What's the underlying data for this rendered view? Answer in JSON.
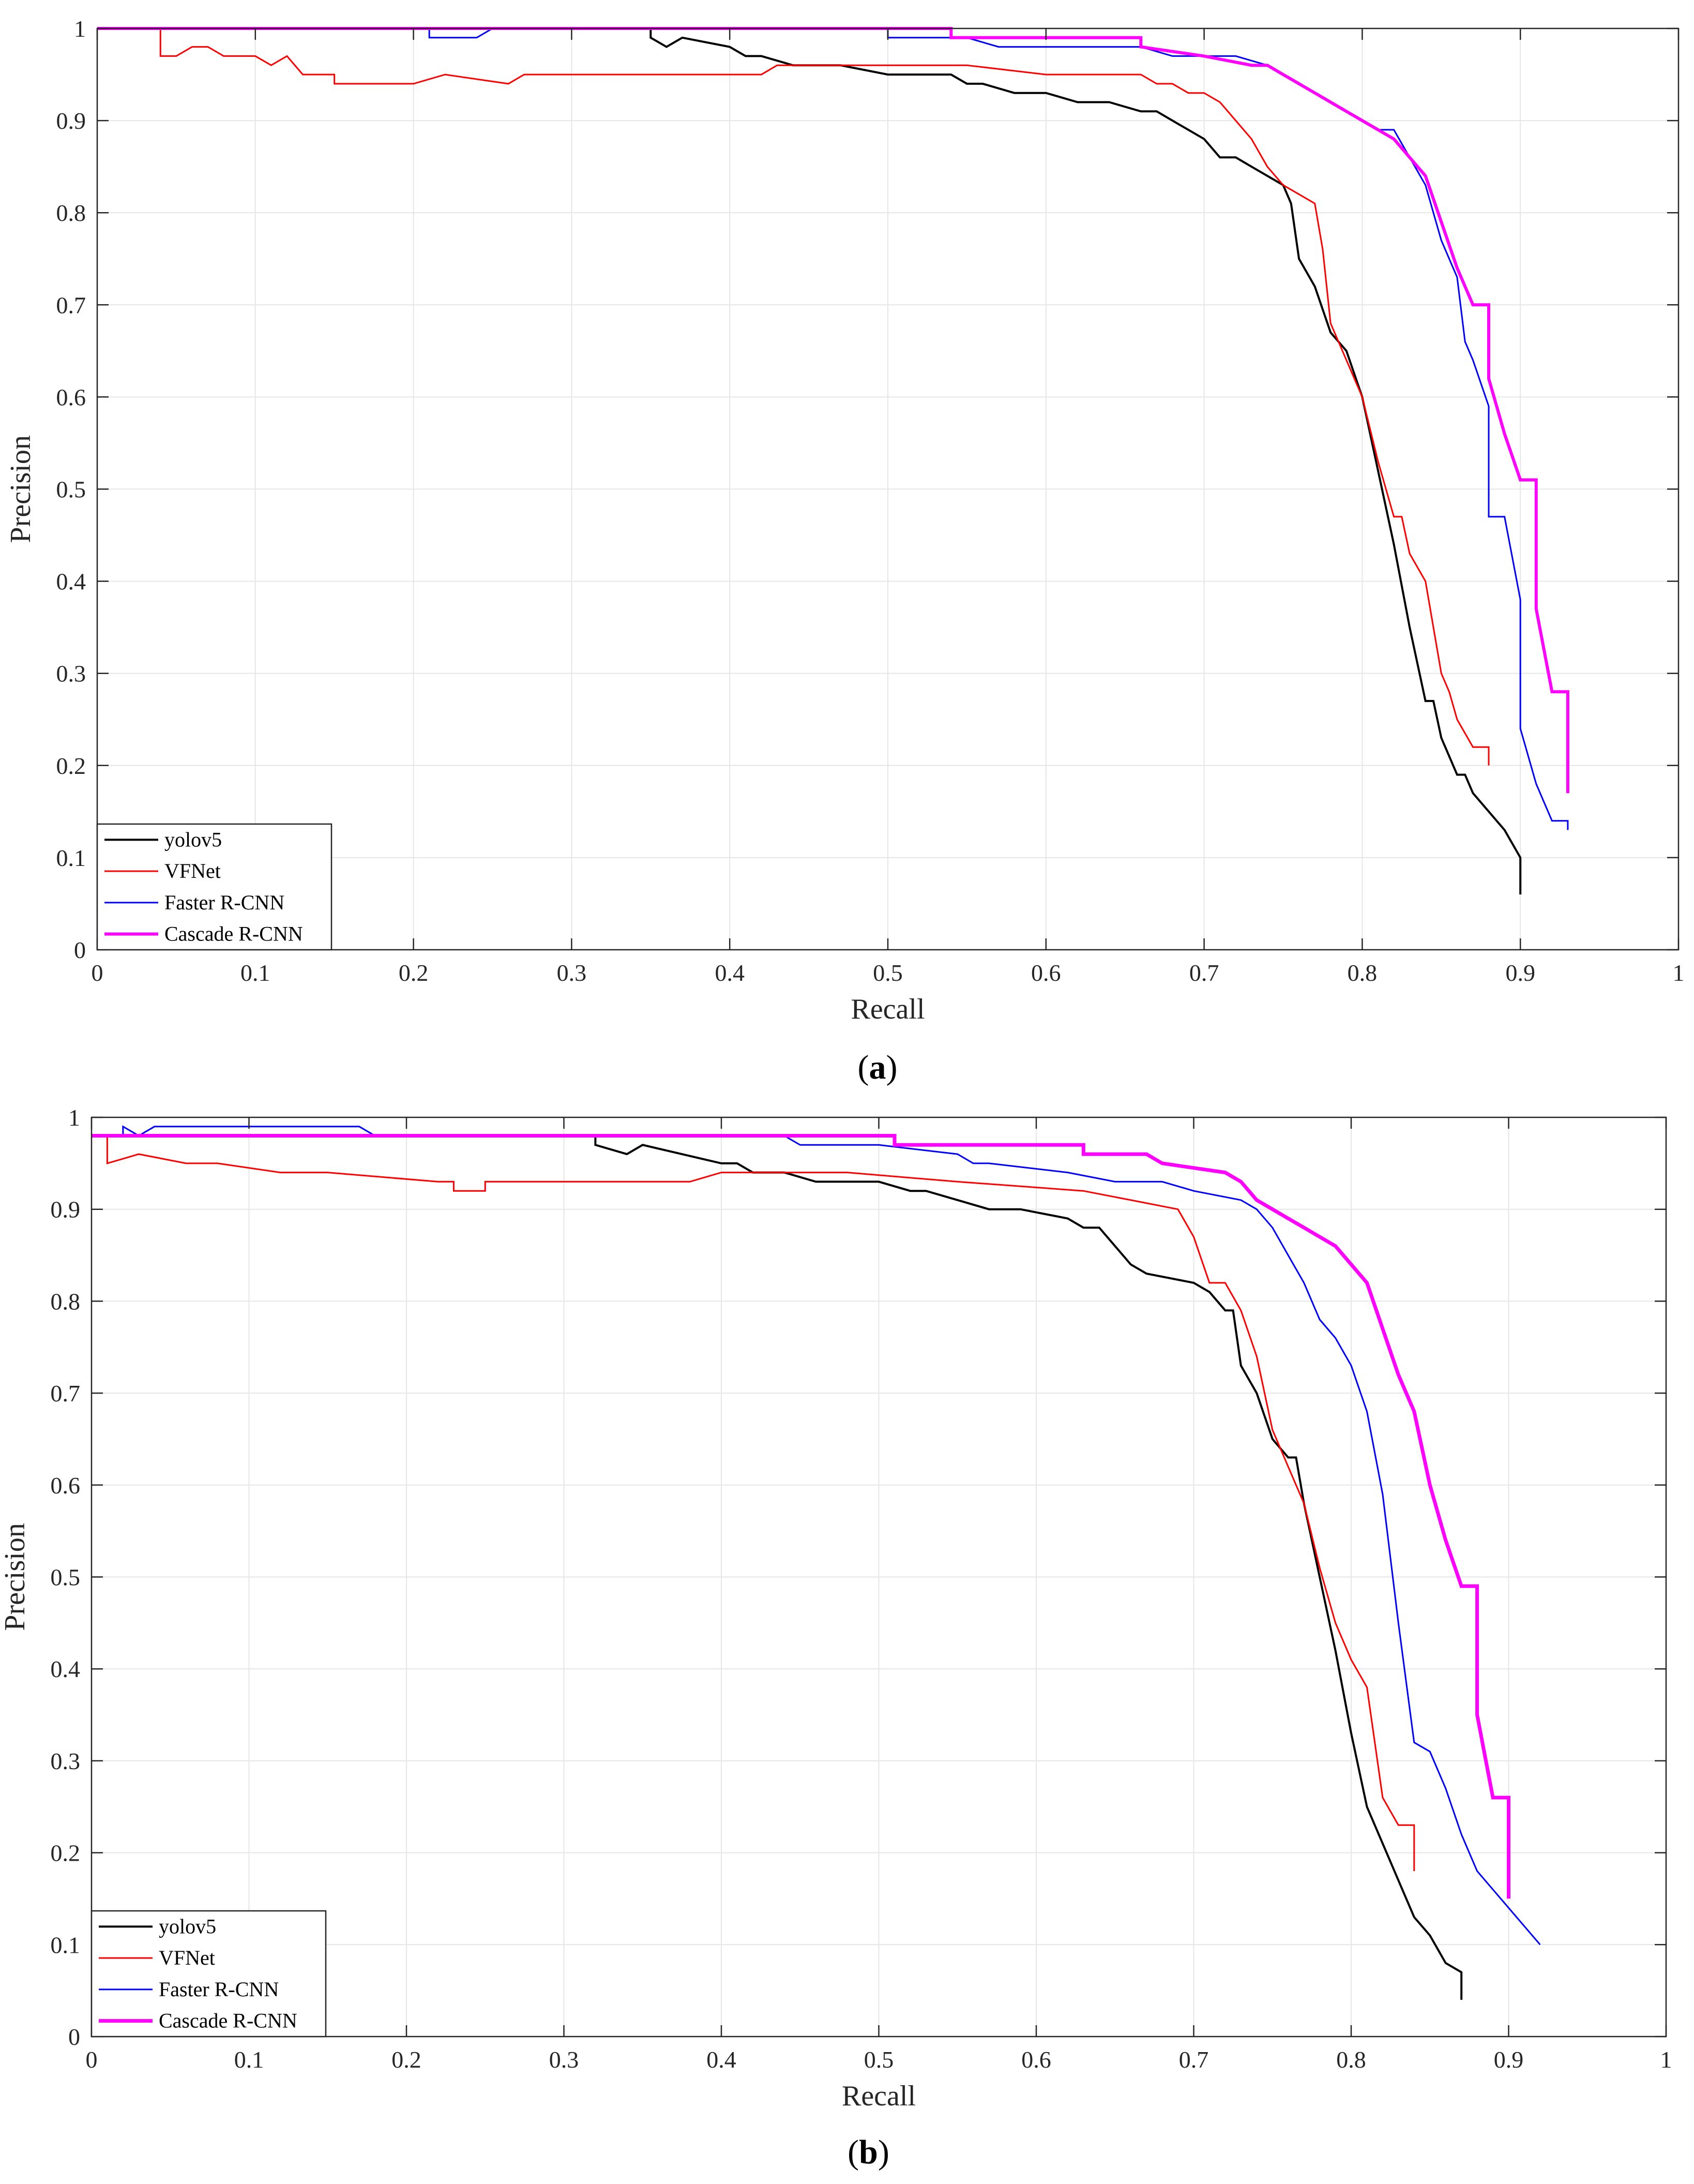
{
  "chart_data": [
    {
      "type": "line",
      "panel_label": "a",
      "xlabel": "Recall",
      "ylabel": "Precision",
      "xlim": [
        0,
        1
      ],
      "ylim": [
        0,
        1
      ],
      "xticks": [
        0,
        0.1,
        0.2,
        0.3,
        0.4,
        0.5,
        0.6,
        0.7,
        0.8,
        0.9,
        1
      ],
      "yticks": [
        0,
        0.1,
        0.2,
        0.3,
        0.4,
        0.5,
        0.6,
        0.7,
        0.8,
        0.9,
        1
      ],
      "xtick_labels": [
        "0",
        "0.1",
        "0.2",
        "0.3",
        "0.4",
        "0.5",
        "0.6",
        "0.7",
        "0.8",
        "0.9",
        "1"
      ],
      "ytick_labels": [
        "0",
        "0.1",
        "0.2",
        "0.3",
        "0.4",
        "0.5",
        "0.6",
        "0.7",
        "0.8",
        "0.9",
        "1"
      ],
      "grid": true,
      "legend_location": "bottom-left",
      "series": [
        {
          "name": "yolov5",
          "color": "#000000",
          "width": 4,
          "x": [
            0,
            0.35,
            0.35,
            0.36,
            0.37,
            0.4,
            0.41,
            0.42,
            0.44,
            0.46,
            0.47,
            0.5,
            0.54,
            0.55,
            0.56,
            0.58,
            0.6,
            0.62,
            0.64,
            0.66,
            0.67,
            0.68,
            0.69,
            0.7,
            0.71,
            0.72,
            0.73,
            0.74,
            0.75,
            0.755,
            0.76,
            0.77,
            0.78,
            0.79,
            0.8,
            0.81,
            0.82,
            0.83,
            0.84,
            0.845,
            0.85,
            0.86,
            0.865,
            0.87,
            0.88,
            0.89,
            0.9,
            0.9
          ],
          "y": [
            1,
            1,
            0.99,
            0.98,
            0.99,
            0.98,
            0.97,
            0.97,
            0.96,
            0.96,
            0.96,
            0.95,
            0.95,
            0.94,
            0.94,
            0.93,
            0.93,
            0.92,
            0.92,
            0.91,
            0.91,
            0.9,
            0.89,
            0.88,
            0.86,
            0.86,
            0.85,
            0.84,
            0.83,
            0.81,
            0.75,
            0.72,
            0.67,
            0.65,
            0.6,
            0.52,
            0.44,
            0.35,
            0.27,
            0.27,
            0.23,
            0.19,
            0.19,
            0.17,
            0.15,
            0.13,
            0.1,
            0.06
          ]
        },
        {
          "name": "VFNet",
          "color": "#ff0000",
          "width": 3,
          "x": [
            0,
            0.04,
            0.04,
            0.05,
            0.06,
            0.07,
            0.08,
            0.1,
            0.11,
            0.12,
            0.13,
            0.14,
            0.15,
            0.15,
            0.2,
            0.22,
            0.26,
            0.27,
            0.3,
            0.33,
            0.42,
            0.43,
            0.48,
            0.5,
            0.55,
            0.6,
            0.66,
            0.67,
            0.68,
            0.69,
            0.7,
            0.71,
            0.72,
            0.73,
            0.74,
            0.75,
            0.76,
            0.77,
            0.775,
            0.78,
            0.79,
            0.8,
            0.81,
            0.82,
            0.825,
            0.83,
            0.84,
            0.85,
            0.855,
            0.86,
            0.87,
            0.88,
            0.88
          ],
          "y": [
            1,
            1,
            0.97,
            0.97,
            0.98,
            0.98,
            0.97,
            0.97,
            0.96,
            0.97,
            0.95,
            0.95,
            0.95,
            0.94,
            0.94,
            0.95,
            0.94,
            0.95,
            0.95,
            0.95,
            0.95,
            0.96,
            0.96,
            0.96,
            0.96,
            0.95,
            0.95,
            0.94,
            0.94,
            0.93,
            0.93,
            0.92,
            0.9,
            0.88,
            0.85,
            0.83,
            0.82,
            0.81,
            0.76,
            0.68,
            0.64,
            0.6,
            0.53,
            0.47,
            0.47,
            0.43,
            0.4,
            0.3,
            0.28,
            0.25,
            0.22,
            0.22,
            0.2
          ]
        },
        {
          "name": "Faster R-CNN",
          "color": "#0000ff",
          "width": 3,
          "x": [
            0,
            0.21,
            0.21,
            0.24,
            0.25,
            0.5,
            0.5,
            0.55,
            0.57,
            0.66,
            0.68,
            0.72,
            0.74,
            0.75,
            0.76,
            0.77,
            0.78,
            0.79,
            0.8,
            0.81,
            0.82,
            0.83,
            0.84,
            0.845,
            0.85,
            0.86,
            0.865,
            0.87,
            0.88,
            0.88,
            0.89,
            0.9,
            0.9,
            0.91,
            0.92,
            0.93,
            0.93
          ],
          "y": [
            1,
            1,
            0.99,
            0.99,
            1,
            1,
            0.99,
            0.99,
            0.98,
            0.98,
            0.97,
            0.97,
            0.96,
            0.95,
            0.94,
            0.93,
            0.92,
            0.91,
            0.9,
            0.89,
            0.89,
            0.86,
            0.83,
            0.8,
            0.77,
            0.73,
            0.66,
            0.64,
            0.59,
            0.47,
            0.47,
            0.38,
            0.24,
            0.18,
            0.14,
            0.14,
            0.13
          ]
        },
        {
          "name": "Cascade R-CNN",
          "color": "#ff00ff",
          "width": 6,
          "x": [
            0,
            0.54,
            0.54,
            0.66,
            0.66,
            0.7,
            0.73,
            0.74,
            0.75,
            0.76,
            0.77,
            0.78,
            0.79,
            0.8,
            0.81,
            0.82,
            0.83,
            0.84,
            0.85,
            0.86,
            0.87,
            0.88,
            0.88,
            0.89,
            0.9,
            0.91,
            0.91,
            0.92,
            0.93,
            0.93
          ],
          "y": [
            1,
            1,
            0.99,
            0.99,
            0.98,
            0.97,
            0.96,
            0.96,
            0.95,
            0.94,
            0.93,
            0.92,
            0.91,
            0.9,
            0.89,
            0.88,
            0.86,
            0.84,
            0.79,
            0.74,
            0.7,
            0.7,
            0.62,
            0.56,
            0.51,
            0.51,
            0.37,
            0.28,
            0.28,
            0.17
          ]
        }
      ]
    },
    {
      "type": "line",
      "panel_label": "b",
      "xlabel": "Recall",
      "ylabel": "Precision",
      "xlim": [
        0,
        1
      ],
      "ylim": [
        0,
        1
      ],
      "xticks": [
        0,
        0.1,
        0.2,
        0.3,
        0.4,
        0.5,
        0.6,
        0.7,
        0.8,
        0.9,
        1
      ],
      "yticks": [
        0,
        0.1,
        0.2,
        0.3,
        0.4,
        0.5,
        0.6,
        0.7,
        0.8,
        0.9,
        1
      ],
      "xtick_labels": [
        "0",
        "0.1",
        "0.2",
        "0.3",
        "0.4",
        "0.5",
        "0.6",
        "0.7",
        "0.8",
        "0.9",
        "1"
      ],
      "ytick_labels": [
        "0",
        "0.1",
        "0.2",
        "0.3",
        "0.4",
        "0.5",
        "0.6",
        "0.7",
        "0.8",
        "0.9",
        "1"
      ],
      "grid": true,
      "legend_location": "bottom-left",
      "series": [
        {
          "name": "yolov5",
          "color": "#000000",
          "width": 4,
          "x": [
            0,
            0.32,
            0.32,
            0.34,
            0.35,
            0.4,
            0.41,
            0.42,
            0.44,
            0.46,
            0.5,
            0.52,
            0.53,
            0.55,
            0.57,
            0.59,
            0.62,
            0.63,
            0.64,
            0.65,
            0.66,
            0.67,
            0.7,
            0.71,
            0.72,
            0.725,
            0.73,
            0.74,
            0.75,
            0.76,
            0.765,
            0.77,
            0.78,
            0.79,
            0.8,
            0.81,
            0.82,
            0.83,
            0.84,
            0.85,
            0.86,
            0.87,
            0.87
          ],
          "y": [
            0.98,
            0.98,
            0.97,
            0.96,
            0.97,
            0.95,
            0.95,
            0.94,
            0.94,
            0.93,
            0.93,
            0.92,
            0.92,
            0.91,
            0.9,
            0.9,
            0.89,
            0.88,
            0.88,
            0.86,
            0.84,
            0.83,
            0.82,
            0.81,
            0.79,
            0.79,
            0.73,
            0.7,
            0.65,
            0.63,
            0.63,
            0.58,
            0.5,
            0.42,
            0.33,
            0.25,
            0.21,
            0.17,
            0.13,
            0.11,
            0.08,
            0.07,
            0.04
          ]
        },
        {
          "name": "VFNet",
          "color": "#ff0000",
          "width": 3,
          "x": [
            0,
            0.01,
            0.01,
            0.03,
            0.06,
            0.08,
            0.12,
            0.15,
            0.22,
            0.23,
            0.23,
            0.25,
            0.25,
            0.3,
            0.38,
            0.4,
            0.48,
            0.55,
            0.63,
            0.66,
            0.69,
            0.7,
            0.71,
            0.72,
            0.73,
            0.74,
            0.75,
            0.76,
            0.77,
            0.78,
            0.79,
            0.8,
            0.81,
            0.82,
            0.83,
            0.84,
            0.84
          ],
          "y": [
            0.98,
            0.98,
            0.95,
            0.96,
            0.95,
            0.95,
            0.94,
            0.94,
            0.93,
            0.93,
            0.92,
            0.92,
            0.93,
            0.93,
            0.93,
            0.94,
            0.94,
            0.93,
            0.92,
            0.91,
            0.9,
            0.87,
            0.82,
            0.82,
            0.79,
            0.74,
            0.66,
            0.62,
            0.58,
            0.51,
            0.45,
            0.41,
            0.38,
            0.26,
            0.23,
            0.23,
            0.18
          ]
        },
        {
          "name": "Faster R-CNN",
          "color": "#0000ff",
          "width": 3,
          "x": [
            0,
            0.02,
            0.02,
            0.03,
            0.04,
            0.17,
            0.18,
            0.44,
            0.45,
            0.5,
            0.55,
            0.56,
            0.57,
            0.62,
            0.65,
            0.68,
            0.7,
            0.73,
            0.74,
            0.75,
            0.76,
            0.77,
            0.78,
            0.79,
            0.8,
            0.81,
            0.82,
            0.83,
            0.84,
            0.85,
            0.86,
            0.87,
            0.88,
            0.89,
            0.9,
            0.91,
            0.92,
            0.92
          ],
          "y": [
            0.98,
            0.98,
            0.99,
            0.98,
            0.99,
            0.99,
            0.98,
            0.98,
            0.97,
            0.97,
            0.96,
            0.95,
            0.95,
            0.94,
            0.93,
            0.93,
            0.92,
            0.91,
            0.9,
            0.88,
            0.85,
            0.82,
            0.78,
            0.76,
            0.73,
            0.68,
            0.59,
            0.45,
            0.32,
            0.31,
            0.27,
            0.22,
            0.18,
            0.16,
            0.14,
            0.12,
            0.1,
            0.1
          ]
        },
        {
          "name": "Cascade R-CNN",
          "color": "#ff00ff",
          "width": 7,
          "x": [
            0,
            0.51,
            0.51,
            0.63,
            0.63,
            0.67,
            0.68,
            0.72,
            0.73,
            0.74,
            0.75,
            0.76,
            0.77,
            0.78,
            0.79,
            0.8,
            0.81,
            0.82,
            0.82,
            0.83,
            0.84,
            0.85,
            0.86,
            0.87,
            0.88,
            0.88,
            0.89,
            0.9,
            0.9
          ],
          "y": [
            0.98,
            0.98,
            0.97,
            0.97,
            0.96,
            0.96,
            0.95,
            0.94,
            0.93,
            0.91,
            0.9,
            0.89,
            0.88,
            0.87,
            0.86,
            0.84,
            0.82,
            0.77,
            0.77,
            0.72,
            0.68,
            0.6,
            0.54,
            0.49,
            0.49,
            0.35,
            0.26,
            0.26,
            0.15
          ]
        }
      ]
    }
  ]
}
